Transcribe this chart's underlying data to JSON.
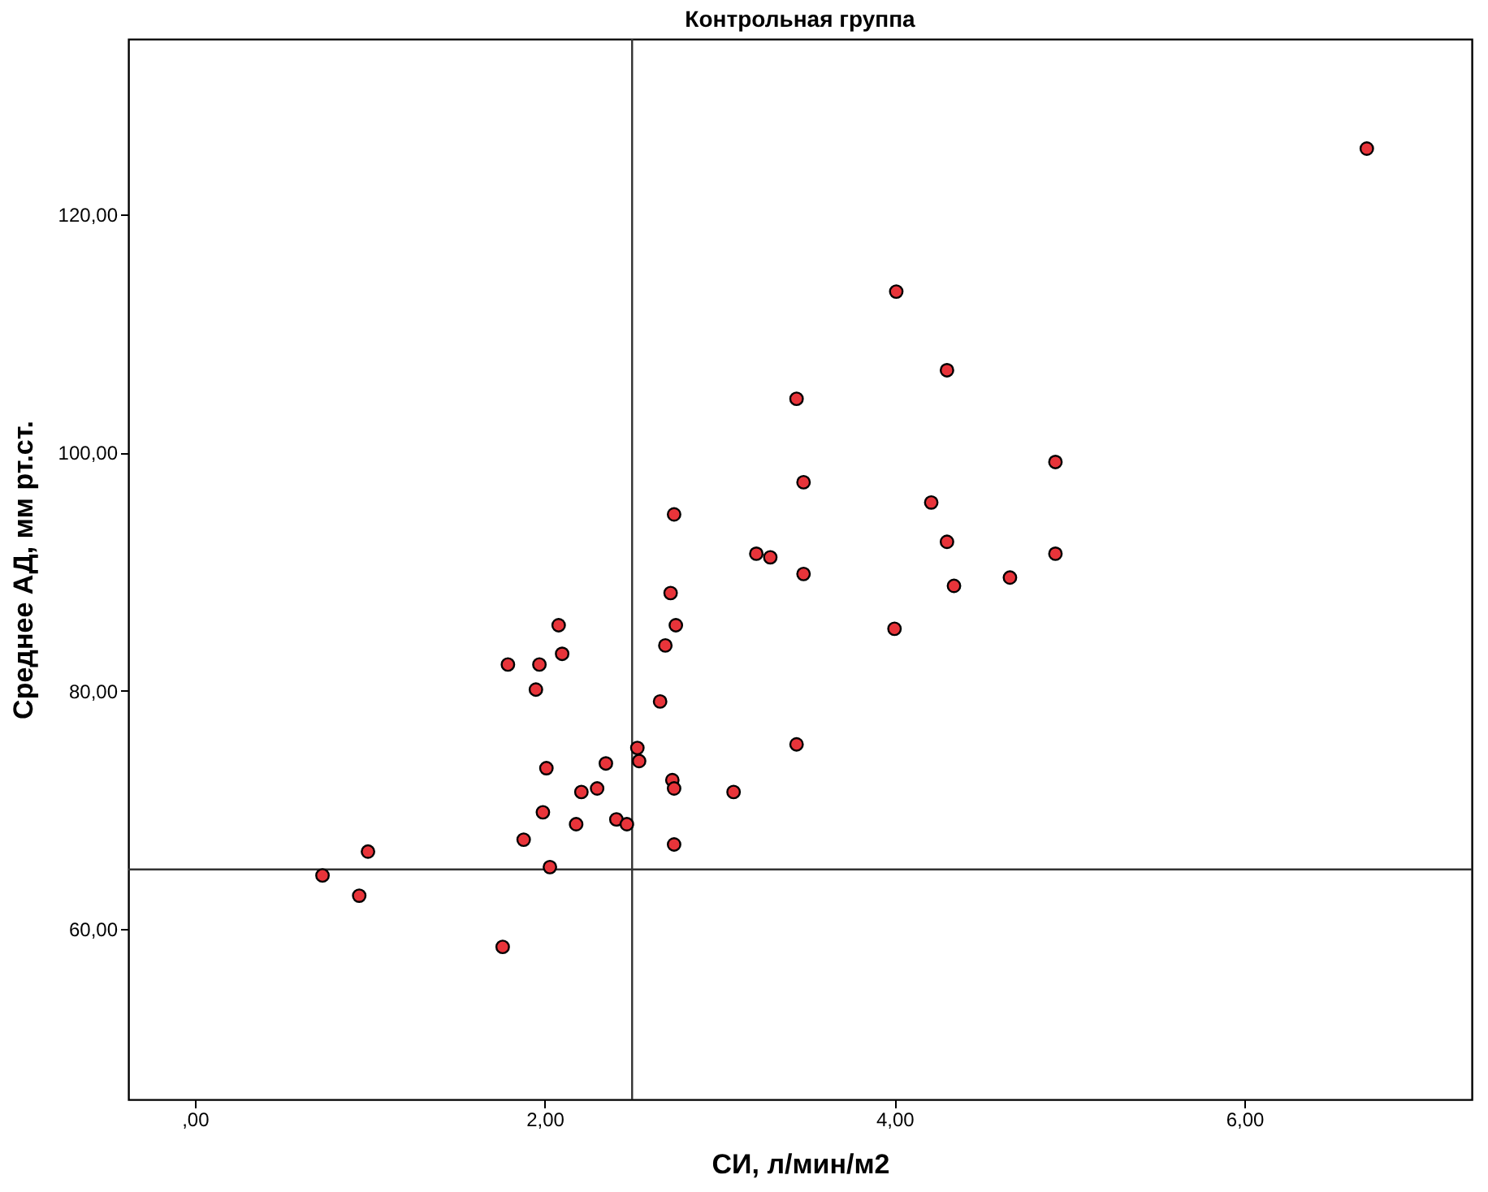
{
  "chart_data": {
    "type": "scatter",
    "title": "Контрольная группа",
    "xlabel": "СИ, л/мин/м2",
    "ylabel": "Среднее АД, мм рт.ст.",
    "xlim": [
      -0.38,
      7.3
    ],
    "ylim": [
      45.7,
      134.7
    ],
    "xticks": [
      {
        "value": 0,
        "label": ",00"
      },
      {
        "value": 2,
        "label": "2,00"
      },
      {
        "value": 4,
        "label": "4,00"
      },
      {
        "value": 6,
        "label": "6,00"
      }
    ],
    "yticks": [
      {
        "value": 60,
        "label": "60,00"
      },
      {
        "value": 80,
        "label": "80,00"
      },
      {
        "value": 100,
        "label": "100,00"
      },
      {
        "value": 120,
        "label": "120,00"
      }
    ],
    "grid": false,
    "marker": "circle",
    "ref_lines": [
      {
        "axis": "x",
        "value": 2.5,
        "color": "#333333"
      },
      {
        "axis": "y",
        "value": 65,
        "color": "#333333"
      }
    ],
    "series": [
      {
        "color": "#e8343a",
        "x": [
          6.7,
          4.01,
          4.3,
          3.44,
          4.92,
          3.48,
          4.21,
          2.74,
          4.3,
          3.21,
          3.29,
          4.92,
          3.48,
          4.66,
          4.34,
          4.0,
          2.72,
          2.08,
          2.75,
          2.1,
          1.79,
          1.97,
          2.69,
          1.95,
          2.66,
          2.53,
          2.54,
          3.44,
          2.01,
          2.35,
          2.21,
          2.3,
          2.73,
          2.74,
          3.08,
          1.99,
          2.18,
          2.41,
          2.47,
          1.88,
          2.74,
          0.99,
          0.73,
          2.03,
          0.94,
          1.76
        ],
        "values": [
          125.5,
          113.5,
          106.9,
          104.5,
          99.2,
          97.5,
          95.8,
          94.8,
          92.5,
          91.5,
          91.2,
          91.5,
          89.8,
          89.5,
          88.8,
          85.2,
          88.2,
          85.5,
          85.5,
          83.1,
          82.2,
          82.2,
          83.8,
          80.1,
          79.1,
          75.2,
          74.1,
          75.5,
          73.5,
          73.9,
          71.5,
          71.8,
          72.5,
          71.8,
          71.5,
          69.8,
          68.8,
          69.2,
          68.8,
          67.5,
          67.1,
          66.5,
          64.5,
          65.2,
          62.8,
          58.5
        ]
      }
    ]
  }
}
